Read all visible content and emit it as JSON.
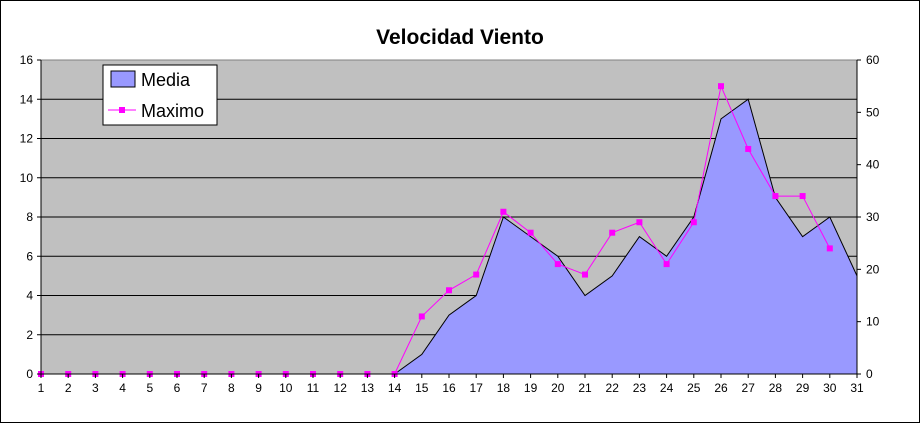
{
  "chart_data": {
    "type": "area",
    "title": "Velocidad Viento",
    "xlabel": "",
    "ylabel": "",
    "x": [
      1,
      2,
      3,
      4,
      5,
      6,
      7,
      8,
      9,
      10,
      11,
      12,
      13,
      14,
      15,
      16,
      17,
      18,
      19,
      20,
      21,
      22,
      23,
      24,
      25,
      26,
      27,
      28,
      29,
      30,
      31
    ],
    "series": [
      {
        "name": "Media",
        "type": "area",
        "axis": "left",
        "color": "#9999ff",
        "values": [
          0,
          0,
          0,
          0,
          0,
          0,
          0,
          0,
          0,
          0,
          0,
          0,
          0,
          0,
          1,
          3,
          4,
          8,
          7,
          6,
          4,
          5,
          7,
          6,
          8,
          13,
          14,
          9,
          7,
          8,
          5
        ]
      },
      {
        "name": "Maximo",
        "type": "line",
        "axis": "right",
        "color": "#ff00ff",
        "values": [
          0,
          0,
          0,
          0,
          0,
          0,
          0,
          0,
          0,
          0,
          0,
          0,
          0,
          0,
          11,
          16,
          19,
          31,
          27,
          21,
          19,
          27,
          29,
          21,
          29,
          55,
          43,
          34,
          34,
          24,
          null
        ]
      }
    ],
    "ylim_left": [
      0,
      16
    ],
    "yticks_left": [
      0,
      2,
      4,
      6,
      8,
      10,
      12,
      14,
      16
    ],
    "ylim_right": [
      0,
      60
    ],
    "yticks_right": [
      0,
      10,
      20,
      30,
      40,
      50,
      60
    ],
    "grid": true,
    "legend_position": "top-left",
    "plot_background": "#c0c0c0"
  }
}
